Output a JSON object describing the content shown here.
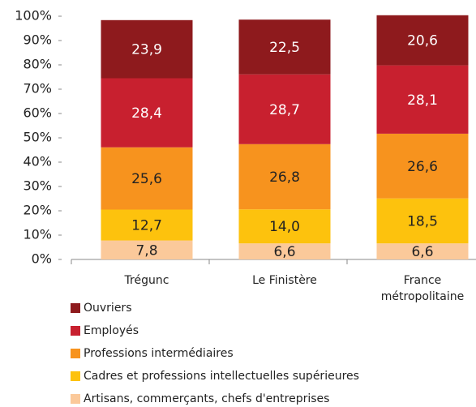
{
  "chart_data": {
    "type": "stacked_bar",
    "categories": [
      "Trégunc",
      "Le Finistère",
      "France métropolitaine"
    ],
    "series": [
      {
        "name": "Artisans, commerçants, chefs d'entreprises",
        "color": "#fbc99a",
        "values": [
          7.8,
          6.6,
          6.6
        ],
        "value_labels": [
          "7,8",
          "6,6",
          "6,6"
        ]
      },
      {
        "name": "Cadres et professions intellectuelles supérieures",
        "color": "#fdc20d",
        "values": [
          12.7,
          14.0,
          18.5
        ],
        "value_labels": [
          "12,7",
          "14,0",
          "18,5"
        ]
      },
      {
        "name": "Professions intermédiaires",
        "color": "#f7931e",
        "values": [
          25.6,
          26.8,
          26.6
        ],
        "value_labels": [
          "25,6",
          "26,8",
          "26,6"
        ]
      },
      {
        "name": "Employés",
        "color": "#c8202f",
        "values": [
          28.4,
          28.7,
          28.1
        ],
        "value_labels": [
          "28,4",
          "28,7",
          "28,1"
        ]
      },
      {
        "name": "Ouvriers",
        "color": "#8e1a1d",
        "values": [
          23.9,
          22.5,
          20.6
        ],
        "value_labels": [
          "23,9",
          "22,5",
          "20,6"
        ]
      }
    ],
    "ylim": [
      0,
      100
    ],
    "yticks": [
      {
        "value": 0,
        "label": "0%"
      },
      {
        "value": 10,
        "label": "10%"
      },
      {
        "value": 20,
        "label": "20%"
      },
      {
        "value": 30,
        "label": "30%"
      },
      {
        "value": 40,
        "label": "40%"
      },
      {
        "value": 50,
        "label": "50%"
      },
      {
        "value": 60,
        "label": "60%"
      },
      {
        "value": 70,
        "label": "70%"
      },
      {
        "value": 80,
        "label": "80%"
      },
      {
        "value": 90,
        "label": "90%"
      },
      {
        "value": 100,
        "label": "100%"
      }
    ],
    "grid": false,
    "legend": "bottom"
  }
}
